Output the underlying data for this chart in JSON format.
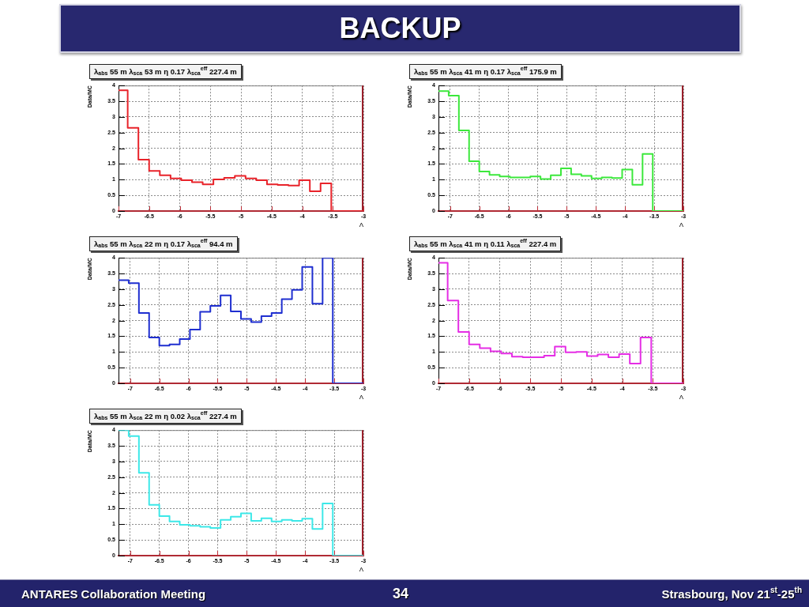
{
  "chart_data": [
    {
      "type": "other",
      "title": "BACKUP",
      "annotations": [
        "ANTARES Collaboration Meeting",
        "34",
        "Strasbourg, Nov 21$^{st}$-25$^{th}$"
      ]
    },
    {
      "type": "histogram",
      "title": "λ$_{abs}$ 55 m λ$_{sca}$ 53 m η 0.17 λ$_{sca}$$^{eff}$ 227.4 m",
      "xlabel": "Λ",
      "ylabel": "Data/MC",
      "bins": [
        -7,
        -6.85,
        -6.675,
        -6.5,
        -6.325,
        -6.15,
        -5.975,
        -5.8,
        -5.625,
        -5.45,
        -5.275,
        -5.1,
        -4.925,
        -4.75,
        -4.575,
        -4.4,
        -4.225,
        -4.05,
        -3.875,
        -3.7,
        -3.525,
        -3.35,
        -3.175,
        -3
      ],
      "values": [
        3.85,
        2.65,
        1.64,
        1.28,
        1.14,
        1.04,
        0.98,
        0.92,
        0.85,
        1.01,
        1.06,
        1.12,
        1.04,
        0.98,
        0.85,
        0.83,
        0.81,
        0.98,
        0.63,
        0.88,
        0,
        0,
        0
      ],
      "color": "#e8232a",
      "xlim": [
        -7,
        -3
      ],
      "xticks": [
        -7,
        -6.5,
        -6,
        -5.5,
        -5,
        -4.5,
        -4,
        -3.5,
        -3
      ],
      "ylim": [
        0,
        4
      ],
      "yticks": [
        0,
        0.5,
        1,
        1.5,
        2,
        2.5,
        3,
        3.5,
        4
      ],
      "grid": true
    },
    {
      "type": "histogram",
      "title": "λ$_{abs}$ 55 m λ$_{sca}$ 41 m η 0.17 λ$_{sca}$$^{eff}$ 175.9 m",
      "xlabel": "Λ",
      "ylabel": "Data/MC",
      "bins": [
        -7.2,
        -7.025,
        -6.85,
        -6.675,
        -6.5,
        -6.325,
        -6.15,
        -5.975,
        -5.8,
        -5.625,
        -5.45,
        -5.275,
        -5.1,
        -4.925,
        -4.75,
        -4.575,
        -4.4,
        -4.225,
        -4.05,
        -3.875,
        -3.7,
        -3.525,
        -3.35,
        -3.175,
        -3
      ],
      "values": [
        3.82,
        3.68,
        2.57,
        1.59,
        1.26,
        1.15,
        1.1,
        1.07,
        1.07,
        1.1,
        1.02,
        1.14,
        1.36,
        1.17,
        1.12,
        1.04,
        1.07,
        1.05,
        1.32,
        0.84,
        1.82,
        0,
        0,
        0
      ],
      "color": "#3ce83c",
      "xlim": [
        -7.2,
        -3
      ],
      "xticks": [
        -7,
        -6.5,
        -6,
        -5.5,
        -5,
        -4.5,
        -4,
        -3.5,
        -3
      ],
      "ylim": [
        0,
        4
      ],
      "yticks": [
        0,
        0.5,
        1,
        1.5,
        2,
        2.5,
        3,
        3.5,
        4
      ],
      "grid": true
    },
    {
      "type": "histogram",
      "title": "λ$_{abs}$ 55 m λ$_{sca}$ 22 m η 0.17 λ$_{sca}$$^{eff}$ 94.4 m",
      "xlabel": "Λ",
      "ylabel": "Data/MC",
      "bins": [
        -7.2,
        -7.025,
        -6.85,
        -6.675,
        -6.5,
        -6.325,
        -6.15,
        -5.975,
        -5.8,
        -5.625,
        -5.45,
        -5.275,
        -5.1,
        -4.925,
        -4.75,
        -4.575,
        -4.4,
        -4.225,
        -4.05,
        -3.875,
        -3.7,
        -3.525,
        -3.35,
        -3.175,
        -3
      ],
      "values": [
        3.29,
        3.19,
        2.24,
        1.46,
        1.2,
        1.24,
        1.41,
        1.71,
        2.28,
        2.47,
        2.8,
        2.29,
        2.05,
        1.95,
        2.14,
        2.24,
        2.68,
        2.98,
        3.71,
        2.54,
        4,
        0,
        0,
        0
      ],
      "color": "#1f2fd0",
      "xlim": [
        -7.2,
        -3
      ],
      "xticks": [
        -7,
        -6.5,
        -6,
        -5.5,
        -5,
        -4.5,
        -4,
        -3.5,
        -3
      ],
      "ylim": [
        0,
        4
      ],
      "yticks": [
        0,
        0.5,
        1,
        1.5,
        2,
        2.5,
        3,
        3.5,
        4
      ],
      "grid": true
    },
    {
      "type": "histogram",
      "title": "λ$_{abs}$ 55 m λ$_{sca}$ 41 m η 0.11 λ$_{sca}$$^{eff}$ 227.4 m",
      "xlabel": "Λ",
      "ylabel": "Data/MC",
      "bins": [
        -7,
        -6.85,
        -6.675,
        -6.5,
        -6.325,
        -6.15,
        -5.975,
        -5.8,
        -5.625,
        -5.45,
        -5.275,
        -5.1,
        -4.925,
        -4.75,
        -4.575,
        -4.4,
        -4.225,
        -4.05,
        -3.875,
        -3.7,
        -3.525,
        -3.35,
        -3.175,
        -3
      ],
      "values": [
        3.84,
        2.64,
        1.64,
        1.24,
        1.12,
        1.02,
        0.95,
        0.85,
        0.83,
        0.83,
        0.88,
        1.17,
        0.99,
        1,
        0.87,
        0.92,
        0.83,
        0.93,
        0.63,
        1.46,
        0,
        0,
        0
      ],
      "color": "#e52ee5",
      "xlim": [
        -7,
        -3
      ],
      "xticks": [
        -7,
        -6.5,
        -6,
        -5.5,
        -5,
        -4.5,
        -4,
        -3.5,
        -3
      ],
      "ylim": [
        0,
        4
      ],
      "yticks": [
        0,
        0.5,
        1,
        1.5,
        2,
        2.5,
        3,
        3.5,
        4
      ],
      "grid": true
    },
    {
      "type": "histogram",
      "title": "λ$_{abs}$ 55 m λ$_{sca}$ 22 m η 0.02 λ$_{sca}$$^{eff}$ 227.4 m",
      "xlabel": "Λ",
      "ylabel": "Data/MC",
      "bins": [
        -7.2,
        -7.025,
        -6.85,
        -6.675,
        -6.5,
        -6.325,
        -6.15,
        -5.975,
        -5.8,
        -5.625,
        -5.45,
        -5.275,
        -5.1,
        -4.925,
        -4.75,
        -4.575,
        -4.4,
        -4.225,
        -4.05,
        -3.875,
        -3.7,
        -3.525,
        -3.35,
        -3.175,
        -3
      ],
      "values": [
        4,
        3.81,
        2.64,
        1.62,
        1.26,
        1.09,
        0.98,
        0.95,
        0.92,
        0.88,
        1.14,
        1.24,
        1.35,
        1.11,
        1.19,
        1.09,
        1.14,
        1.11,
        1.18,
        0.85,
        1.66,
        0,
        0,
        0
      ],
      "color": "#3de8e8",
      "xlim": [
        -7.2,
        -3
      ],
      "xticks": [
        -7,
        -6.5,
        -6,
        -5.5,
        -5,
        -4.5,
        -4,
        -3.5,
        -3
      ],
      "ylim": [
        0,
        4
      ],
      "yticks": [
        0,
        0.5,
        1,
        1.5,
        2,
        2.5,
        3,
        3.5,
        4
      ],
      "grid": true
    }
  ]
}
